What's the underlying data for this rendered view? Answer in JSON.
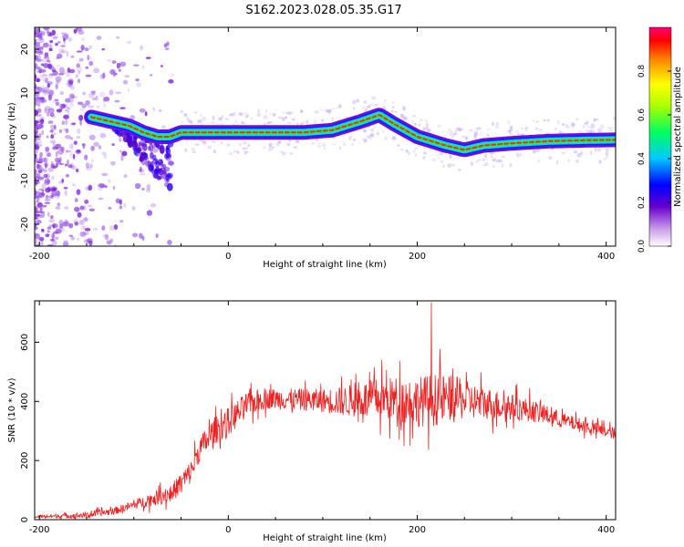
{
  "title": "S162.2023.028.05.35.G17",
  "chart_data": [
    {
      "type": "heatmap",
      "xlabel": "Height of straight line (km)",
      "ylabel": "Frequency (Hz)",
      "xlim": [
        -205,
        410
      ],
      "ylim": [
        -25,
        25
      ],
      "x_ticks": [
        "-200",
        "0",
        "200",
        "400"
      ],
      "y_ticks": [
        "-20",
        "-10",
        "0",
        "10",
        "20"
      ],
      "colorbar": {
        "label": "Normalized spectral amplitude",
        "range": [
          0,
          1
        ],
        "ticks": [
          "0.0",
          "0.2",
          "0.4",
          "0.6",
          "0.8"
        ]
      },
      "ridge": {
        "x": [
          -145,
          -125,
          -105,
          -90,
          -75,
          -62,
          -50,
          -40,
          -20,
          0,
          40,
          80,
          110,
          140,
          160,
          175,
          200,
          230,
          250,
          270,
          300,
          340,
          380,
          410
        ],
        "freq": [
          4.5,
          3.5,
          2.5,
          1.0,
          0.0,
          0.0,
          1.0,
          1.0,
          1.0,
          1.0,
          1.0,
          1.0,
          1.5,
          3.5,
          5.0,
          3.0,
          0.0,
          -2.0,
          -3.0,
          -2.0,
          -1.5,
          -1.0,
          -0.8,
          -0.7
        ]
      },
      "grid": false
    },
    {
      "type": "line",
      "xlabel": "Height of straight line (km)",
      "ylabel": "SNR (10 * v/v)",
      "xlim": [
        -205,
        410
      ],
      "ylim": [
        0,
        740
      ],
      "x_ticks": [
        "-200",
        "0",
        "200",
        "400"
      ],
      "y_ticks": [
        "0",
        "200",
        "400",
        "600"
      ],
      "color": "#ee2222",
      "envelope": {
        "x": [
          -205,
          -150,
          -120,
          -90,
          -60,
          -40,
          -30,
          -15,
          0,
          20,
          40,
          80,
          120,
          160,
          200,
          240,
          280,
          320,
          360,
          410
        ],
        "snr": [
          10,
          15,
          30,
          60,
          90,
          160,
          240,
          300,
          330,
          390,
          410,
          405,
          400,
          410,
          400,
          410,
          390,
          370,
          330,
          290
        ]
      },
      "noise_amplitude": {
        "x": [
          -205,
          -100,
          -40,
          0,
          40,
          100,
          140,
          180,
          220,
          260,
          300,
          360,
          410
        ],
        "amp": [
          5,
          15,
          40,
          50,
          35,
          40,
          60,
          80,
          90,
          60,
          45,
          25,
          20
        ]
      },
      "peak": {
        "x": 215,
        "snr": 735
      },
      "grid": false
    }
  ]
}
